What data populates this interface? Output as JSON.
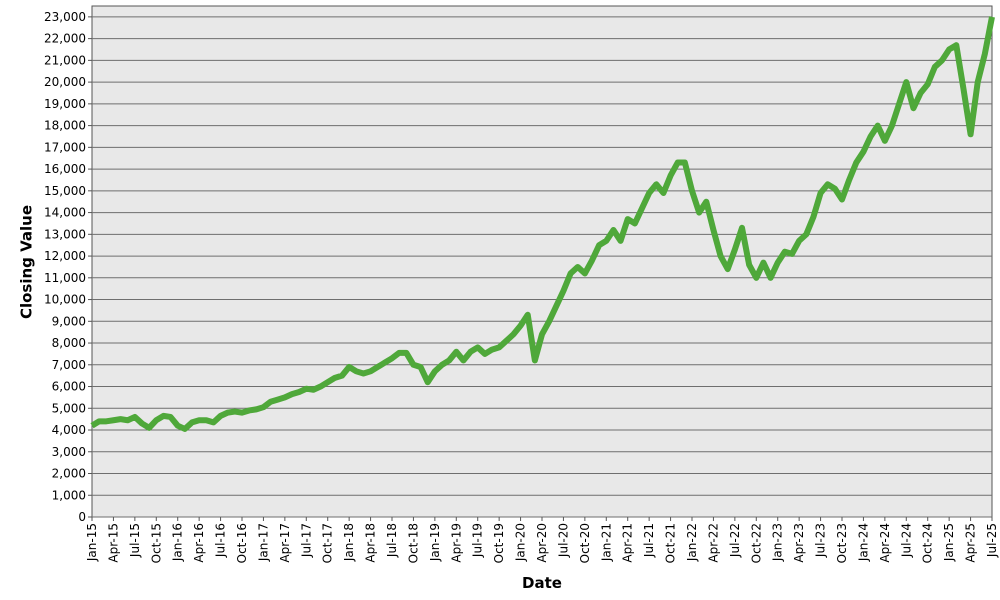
{
  "chart_data": {
    "type": "line",
    "x_label": "Date",
    "y_label": "Closing Value",
    "categories": [
      "Jan-15",
      null,
      null,
      "Apr-15",
      null,
      null,
      "Jul-15",
      null,
      null,
      "Oct-15",
      null,
      null,
      "Jan-16",
      null,
      null,
      "Apr-16",
      null,
      null,
      "Jul-16",
      null,
      null,
      "Oct-16",
      null,
      null,
      "Jan-17",
      null,
      null,
      "Apr-17",
      null,
      null,
      "Jul-17",
      null,
      null,
      "Oct-17",
      null,
      null,
      "Jan-18",
      null,
      null,
      "Apr-18",
      null,
      null,
      "Jul-18",
      null,
      null,
      "Oct-18",
      null,
      null,
      "Jan-19",
      null,
      null,
      "Apr-19",
      null,
      null,
      "Jul-19",
      null,
      null,
      "Oct-19",
      null,
      null,
      "Jan-20",
      null,
      null,
      "Apr-20",
      null,
      null,
      "Jul-20",
      null,
      null,
      "Oct-20",
      null,
      null,
      "Jan-21",
      null,
      null,
      "Apr-21",
      null,
      null,
      "Jul-21",
      null,
      null,
      "Oct-21",
      null,
      null,
      "Jan-22",
      null,
      null,
      "Apr-22",
      null,
      null,
      "Jul-22",
      null,
      null,
      "Oct-22",
      null,
      null,
      "Jan-23",
      null,
      null,
      "Apr-23",
      null,
      null,
      "Jul-23",
      null,
      null,
      "Oct-23",
      null,
      null,
      "Jan-24",
      null,
      null,
      "Apr-24",
      null,
      null,
      "Jul-24",
      null,
      null,
      "Oct-24",
      null,
      null,
      "Jan-25",
      null,
      null,
      "Apr-25",
      null,
      null,
      "Jul-25"
    ],
    "color": "#4fa83a",
    "values": [
      4200,
      4400,
      4400,
      4450,
      4500,
      4450,
      4600,
      4300,
      4100,
      4450,
      4650,
      4600,
      4200,
      4050,
      4350,
      4450,
      4450,
      4350,
      4650,
      4800,
      4850,
      4800,
      4900,
      4950,
      5050,
      5300,
      5400,
      5500,
      5650,
      5750,
      5900,
      5850,
      6000,
      6200,
      6400,
      6500,
      6900,
      6700,
      6600,
      6700,
      6900,
      7100,
      7300,
      7550,
      7550,
      7000,
      6900,
      6200,
      6700,
      7000,
      7200,
      7600,
      7200,
      7600,
      7800,
      7500,
      7700,
      7800,
      8100,
      8400,
      8800,
      9300,
      7200,
      8400,
      9000,
      9700,
      10400,
      11200,
      11500,
      11200,
      11800,
      12500,
      12700,
      13200,
      12700,
      13700,
      13500,
      14200,
      14900,
      15300,
      14900,
      15700,
      16300,
      16300,
      15000,
      14000,
      14500,
      13200,
      12000,
      11400,
      12300,
      13300,
      11600,
      11000,
      11700,
      11000,
      11700,
      12200,
      12100,
      12700,
      13000,
      13800,
      14900,
      15300,
      15100,
      14600,
      15500,
      16300,
      16800,
      17500,
      18000,
      17300,
      18000,
      19000,
      20000,
      18800,
      19500,
      19900,
      20700,
      21000,
      21500,
      21700,
      19700,
      17600,
      20000,
      21300,
      23000
    ],
    "ylim": [
      0,
      23500
    ],
    "yticks": [
      0,
      {
        "value": 1000,
        "label": "1,000"
      },
      {
        "value": 2000,
        "label": "2,000"
      },
      {
        "value": 3000,
        "label": "3,000"
      },
      {
        "value": 4000,
        "label": "4,000"
      },
      {
        "value": 5000,
        "label": "5,000"
      },
      {
        "value": 6000,
        "label": "6,000"
      },
      {
        "value": 7000,
        "label": "7,000"
      },
      {
        "value": 8000,
        "label": "8,000"
      },
      {
        "value": 9000,
        "label": "9,000"
      },
      {
        "value": 10000,
        "label": "10,000"
      },
      {
        "value": 11000,
        "label": "11,000"
      },
      {
        "value": 12000,
        "label": "12,000"
      },
      {
        "value": 13000,
        "label": "13,000"
      },
      {
        "value": 14000,
        "label": "14,000"
      },
      {
        "value": 15000,
        "label": "15,000"
      },
      {
        "value": 16000,
        "label": "16,000"
      },
      {
        "value": 17000,
        "label": "17,000"
      },
      {
        "value": 18000,
        "label": "18,000"
      },
      {
        "value": 19000,
        "label": "19,000"
      },
      {
        "value": 20000,
        "label": "20,000"
      },
      {
        "value": 21000,
        "label": "21,000"
      },
      {
        "value": 22000,
        "label": "22,000"
      },
      {
        "value": 23000,
        "label": "23,000"
      }
    ],
    "grid": true
  }
}
